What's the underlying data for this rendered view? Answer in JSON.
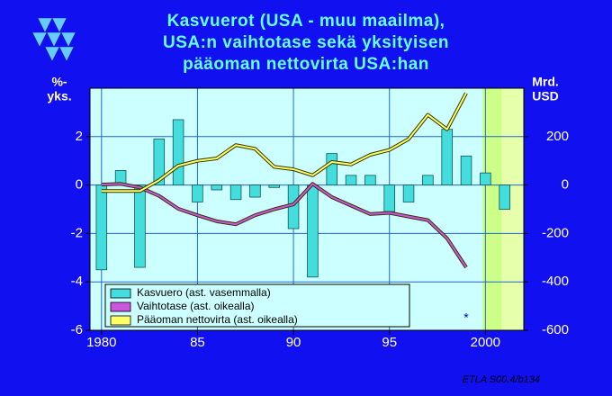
{
  "chart_data": {
    "type": "bar_line",
    "title_lines": [
      "Kasvuerot (USA - muu maailma),",
      "USA:n vaihtotase sekä yksityisen",
      "pääoman nettovirta USA:han"
    ],
    "y_label_lines": [
      "%-",
      "yks."
    ],
    "y2_label_lines": [
      "Mrd.",
      "USD"
    ],
    "footer": "ETLA S00.4/b134",
    "annotation": "*",
    "x": [
      1980,
      1981,
      1982,
      1983,
      1984,
      1985,
      1986,
      1987,
      1988,
      1989,
      1990,
      1991,
      1992,
      1993,
      1994,
      1995,
      1996,
      1997,
      1998,
      1999,
      2000,
      2001
    ],
    "series": [
      {
        "name": "Kasvuero (ast. vasemmalla)",
        "kind": "bar",
        "axis": "y",
        "color": "#44dddd",
        "values": [
          -3.5,
          0.6,
          -3.4,
          1.9,
          2.7,
          -0.7,
          -0.2,
          -0.6,
          -0.5,
          -0.1,
          -1.8,
          -3.8,
          1.3,
          0.4,
          0.4,
          -1.1,
          -0.7,
          0.4,
          2.3,
          1.2,
          0.5,
          -1.0
        ]
      },
      {
        "name": "Vaihtotase (ast. oikealla)",
        "kind": "line",
        "axis": "y2",
        "color": "#cc55dd",
        "values": [
          2,
          5,
          -10,
          -45,
          -98,
          -125,
          -150,
          -162,
          -125,
          -100,
          -80,
          5,
          -50,
          -85,
          -120,
          -115,
          -130,
          -145,
          -220,
          -340,
          null,
          null
        ]
      },
      {
        "name": "Pääoman nettovirta (ast. oikealla)",
        "kind": "line",
        "axis": "y2",
        "color": "#ffff66",
        "values": [
          -25,
          -25,
          -25,
          20,
          80,
          100,
          110,
          165,
          150,
          75,
          65,
          40,
          95,
          85,
          125,
          145,
          190,
          290,
          230,
          380,
          null,
          null
        ]
      }
    ],
    "xlim": [
      1979.4,
      2002
    ],
    "xticks": [
      1980,
      {
        "value": 1985,
        "label": "85"
      },
      {
        "value": 1990,
        "label": "90"
      },
      {
        "value": 1995,
        "label": "95"
      },
      2000
    ],
    "ylim": [
      -6,
      4
    ],
    "yticks": [
      2,
      0,
      -2,
      -4,
      -6
    ],
    "y2lim": [
      -600,
      400
    ],
    "y2ticks": [
      200,
      0,
      -200,
      -400,
      -600
    ],
    "shaded_ranges": [
      [
        1999.85,
        2000.85
      ],
      [
        2000.85,
        2002
      ]
    ],
    "shade_colors": [
      "#ccff88",
      "#e6ffaa"
    ],
    "plot_color": "#ccffff",
    "grid": true
  }
}
